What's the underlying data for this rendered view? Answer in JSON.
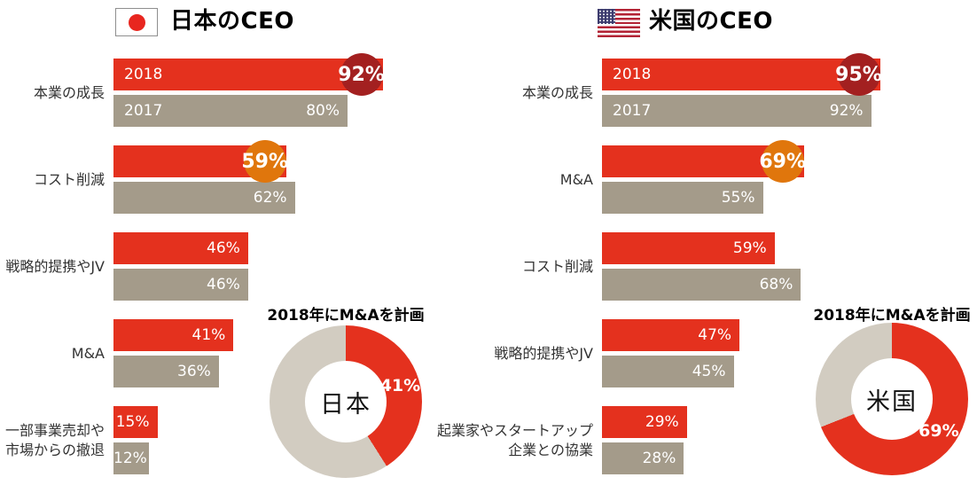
{
  "colors": {
    "red": "#E4311E",
    "tan": "#A49B8A",
    "dark_red": "#A32020",
    "orange": "#E0760C",
    "donut_gray": "#D2CCC1",
    "text_dark": "#333333",
    "jp_flag_red": "#E8261F",
    "us_flag_red": "#B22234",
    "us_flag_blue": "#3C3B6E"
  },
  "chart_data": [
    {
      "type": "bar",
      "orientation": "horizontal",
      "title": "日本のCEO",
      "flag_icon": "japan-flag",
      "unit": "%",
      "xlim": [
        0,
        100
      ],
      "series_names": [
        "2018",
        "2017"
      ],
      "categories": [
        "本業の成長",
        "コスト削減",
        "戦略的提携やJV",
        "M&A",
        "一部事業売却や市場からの撤退"
      ],
      "groups": [
        {
          "category_lines": [
            "本業の成長"
          ],
          "values": {
            "2018": 92,
            "2017": 80
          },
          "badge": "dark_red"
        },
        {
          "category_lines": [
            "コスト削減"
          ],
          "values": {
            "2018": 59,
            "2017": 62
          },
          "badge": "orange"
        },
        {
          "category_lines": [
            "戦略的提携やJV"
          ],
          "values": {
            "2018": 46,
            "2017": 46
          }
        },
        {
          "category_lines": [
            "M&A"
          ],
          "values": {
            "2018": 41,
            "2017": 36
          }
        },
        {
          "category_lines": [
            "一部事業売却や",
            "市場からの撤退"
          ],
          "values": {
            "2018": 15,
            "2017": 12
          }
        }
      ]
    },
    {
      "type": "pie",
      "title": "2018年にM&Aを計画",
      "center_label": "日本",
      "slices": [
        {
          "value": 41
        },
        {
          "value": 59
        }
      ]
    },
    {
      "type": "bar",
      "orientation": "horizontal",
      "title": "米国のCEO",
      "flag_icon": "us-flag",
      "unit": "%",
      "xlim": [
        0,
        100
      ],
      "series_names": [
        "2018",
        "2017"
      ],
      "categories": [
        "本業の成長",
        "M&A",
        "コスト削減",
        "戦略的提携やJV",
        "起業家やスタートアップ企業との協業"
      ],
      "groups": [
        {
          "category_lines": [
            "本業の成長"
          ],
          "values": {
            "2018": 95,
            "2017": 92
          },
          "badge": "dark_red"
        },
        {
          "category_lines": [
            "M&A"
          ],
          "values": {
            "2018": 69,
            "2017": 55
          },
          "badge": "orange"
        },
        {
          "category_lines": [
            "コスト削減"
          ],
          "values": {
            "2018": 59,
            "2017": 68
          }
        },
        {
          "category_lines": [
            "戦略的提携やJV"
          ],
          "values": {
            "2018": 47,
            "2017": 45
          }
        },
        {
          "category_lines": [
            "起業家やスタートアップ",
            "企業との協業"
          ],
          "values": {
            "2018": 29,
            "2017": 28
          }
        }
      ]
    },
    {
      "type": "pie",
      "title": "2018年にM&Aを計画",
      "center_label": "米国",
      "slices": [
        {
          "value": 69
        },
        {
          "value": 31
        }
      ]
    }
  ]
}
